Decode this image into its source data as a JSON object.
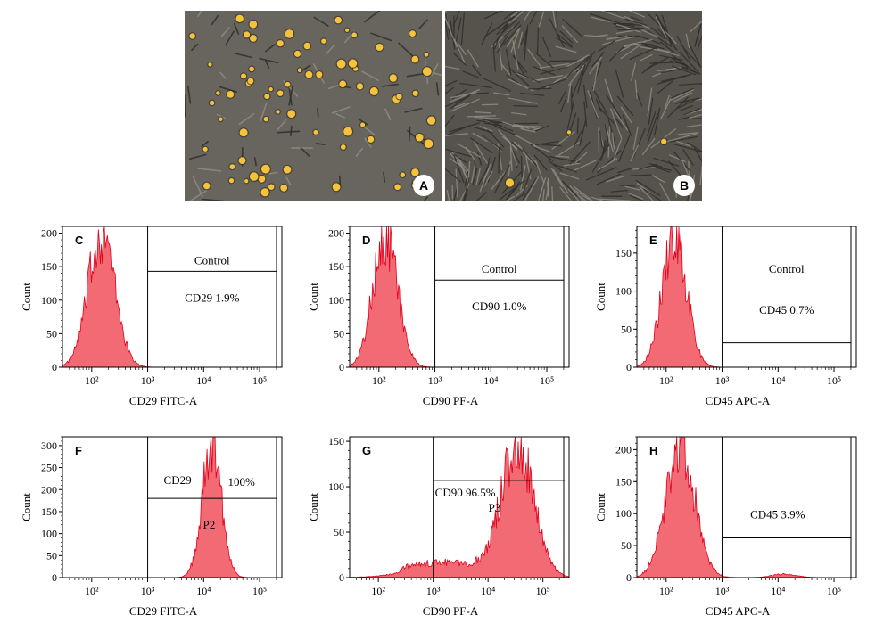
{
  "figure": {
    "micrographs": [
      {
        "letter": "A",
        "style": "sparse"
      },
      {
        "letter": "B",
        "style": "dense"
      }
    ]
  },
  "colors": {
    "histogram_fill": "#f26b74",
    "histogram_stroke": "#e0001a",
    "micrograph_bg": "#5c5a54",
    "cell_yellow": "#f5c23a"
  },
  "chart_data": [
    {
      "panel": "C",
      "type": "area",
      "xscale": "log",
      "xlim": [
        30,
        250000
      ],
      "ylim": [
        0,
        210
      ],
      "xlabel": "CD29 FITC-A",
      "ylabel": "Count",
      "xticks": [
        "10²",
        "10³",
        "10⁴",
        "10⁵"
      ],
      "yticks": [
        "0",
        "50",
        "100",
        "150",
        "200"
      ],
      "gate": {
        "x_from": 1000,
        "y_line": 143
      },
      "gate_labels": [
        "Control",
        "CD29  1.9%"
      ],
      "peak": {
        "center": 150,
        "spread": 0.24,
        "height": 210
      }
    },
    {
      "panel": "D",
      "type": "area",
      "xscale": "log",
      "xlim": [
        30,
        250000
      ],
      "ylim": [
        0,
        210
      ],
      "xlabel": "CD90 PF-A",
      "ylabel": "Count",
      "xticks": [
        "10²",
        "10³",
        "10⁴",
        "10⁵"
      ],
      "yticks": [
        "0",
        "50",
        "100",
        "150",
        "200"
      ],
      "gate": {
        "x_from": 1000,
        "y_line": 130
      },
      "gate_labels": [
        "Control",
        "CD90  1.0%"
      ],
      "peak": {
        "center": 130,
        "spread": 0.22,
        "height": 210
      }
    },
    {
      "panel": "E",
      "type": "area",
      "xscale": "log",
      "xlim": [
        30,
        250000
      ],
      "ylim": [
        0,
        185
      ],
      "xlabel": "CD45 APC-A",
      "ylabel": "Count",
      "xticks": [
        "10²",
        "10³",
        "10⁴",
        "10⁵"
      ],
      "yticks": [
        "0",
        "50",
        "100",
        "150"
      ],
      "gate": {
        "x_from": 1000,
        "y_line": 32
      },
      "gate_labels": [
        "Control",
        "CD45  0.7%"
      ],
      "peak": {
        "center": 140,
        "spread": 0.22,
        "height": 178
      }
    },
    {
      "panel": "F",
      "type": "area",
      "xscale": "log",
      "xlim": [
        30,
        250000
      ],
      "ylim": [
        0,
        320
      ],
      "xlabel": "CD29 FITC-A",
      "ylabel": "Count",
      "xticks": [
        "10²",
        "10³",
        "10⁴",
        "10⁵"
      ],
      "yticks": [
        "0",
        "50",
        "100",
        "150",
        "200",
        "250",
        "300"
      ],
      "gate": {
        "x_from": 1000,
        "y_line": 180
      },
      "gate_labels": [
        "CD29",
        "100%",
        "P2"
      ],
      "peak": {
        "center": 14000,
        "spread": 0.17,
        "height": 318
      }
    },
    {
      "panel": "G",
      "type": "area",
      "xscale": "log",
      "xlim": [
        30,
        300000
      ],
      "ylim": [
        0,
        155
      ],
      "xlabel": "CD90 PF-A",
      "ylabel": "Count",
      "xticks": [
        "10²",
        "10³",
        "10⁴",
        "10⁵"
      ],
      "yticks": [
        "0",
        "50",
        "100",
        "150"
      ],
      "gate": {
        "x_from": 1000,
        "x_to": 250000,
        "y_line": 107
      },
      "gate_labels": [
        "CD90  96.5%",
        "P3"
      ],
      "peak": {
        "center": 35000,
        "spread": 0.3,
        "height": 150,
        "left_tail": true
      }
    },
    {
      "panel": "H",
      "type": "area",
      "xscale": "log",
      "xlim": [
        30,
        250000
      ],
      "ylim": [
        0,
        220
      ],
      "xlabel": "CD45 APC-A",
      "ylabel": "Count",
      "xticks": [
        "10²",
        "10³",
        "10⁴",
        "10⁵"
      ],
      "yticks": [
        "0",
        "50",
        "100",
        "150",
        "200"
      ],
      "gate": {
        "x_from": 1000,
        "y_line": 62
      },
      "gate_labels": [
        "CD45  3.9%"
      ],
      "peak": {
        "center": 180,
        "spread": 0.26,
        "height": 218,
        "secondary": {
          "center": 13000,
          "height": 6
        }
      }
    }
  ]
}
